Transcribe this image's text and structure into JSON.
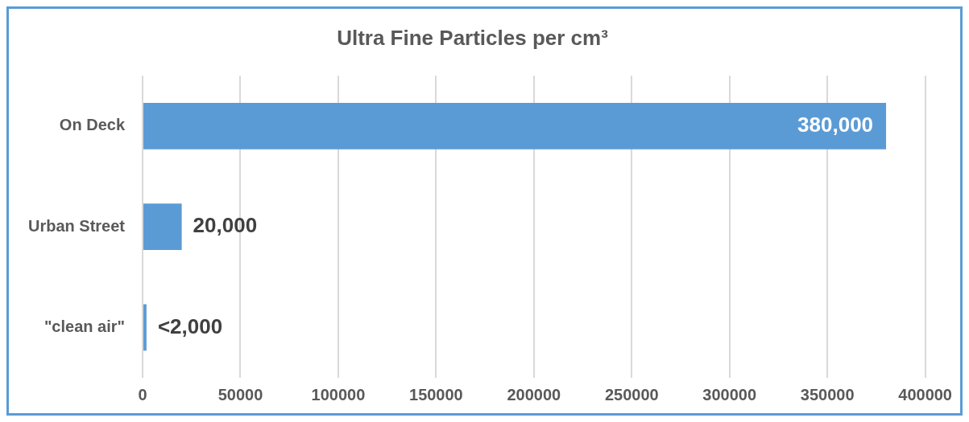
{
  "chart_data": {
    "type": "bar",
    "orientation": "horizontal",
    "title": "Ultra Fine Particles per cm³",
    "categories": [
      "On Deck",
      "Urban Street",
      "\"clean air\""
    ],
    "values": [
      380000,
      20000,
      2000
    ],
    "value_labels": [
      "380,000",
      "20,000",
      "<2,000"
    ],
    "color": "#5b9bd5",
    "xlim": [
      0,
      400000
    ],
    "xticks": [
      0,
      50000,
      100000,
      150000,
      200000,
      250000,
      300000,
      350000,
      400000
    ],
    "grid": "x",
    "legend": false
  }
}
